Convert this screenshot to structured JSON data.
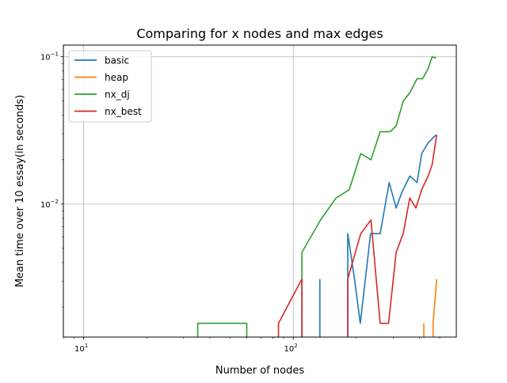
{
  "chart_data": {
    "type": "line",
    "title": "Comparing for x nodes and max edges",
    "xlabel": "Number of nodes",
    "ylabel": "Mean time over 10 essay(in seconds)",
    "xscale": "log",
    "yscale": "log",
    "xlim": [
      8,
      600
    ],
    "ylim": [
      0.00125,
      0.12
    ],
    "xticks": [
      {
        "value": 10,
        "base": "10",
        "exp": "1"
      },
      {
        "value": 100,
        "base": "10",
        "exp": "2"
      }
    ],
    "yticks": [
      {
        "value": 0.01,
        "base": "10",
        "exp": "−2"
      },
      {
        "value": 0.1,
        "base": "10",
        "exp": "−1"
      }
    ],
    "grid": true,
    "legend_position": "top-left",
    "series": [
      {
        "name": "basic",
        "color": "#1f77b4",
        "segments": [
          [
            [
              134,
              0.00125
            ],
            [
              134,
              0.0031
            ]
          ],
          [
            [
              182,
              0.00125
            ],
            [
              182,
              0.0063
            ],
            [
              196,
              0.0031
            ],
            [
              209,
              0.00155
            ],
            [
              234,
              0.0063
            ],
            [
              260,
              0.0063
            ],
            [
              287,
              0.014
            ],
            [
              310,
              0.0094
            ],
            [
              330,
              0.012
            ],
            [
              360,
              0.0155
            ],
            [
              390,
              0.014
            ],
            [
              410,
              0.022
            ],
            [
              440,
              0.026
            ],
            [
              480,
              0.0295
            ]
          ]
        ]
      },
      {
        "name": "heap",
        "color": "#ff7f0e",
        "segments": [
          [
            [
              420,
              0.00125
            ],
            [
              420,
              0.00155
            ]
          ],
          [
            [
              465,
              0.00125
            ],
            [
              465,
              0.00155
            ],
            [
              484,
              0.0031
            ]
          ]
        ]
      },
      {
        "name": "nx_dj",
        "color": "#2ca02c",
        "segments": [
          [
            [
              35,
              0.00125
            ],
            [
              35,
              0.00155
            ],
            [
              60,
              0.00155
            ],
            [
              60,
              0.00125
            ]
          ],
          [
            [
              110,
              0.00125
            ],
            [
              110,
              0.0047
            ],
            [
              135,
              0.0078
            ],
            [
              160,
              0.011
            ],
            [
              185,
              0.0125
            ],
            [
              210,
              0.022
            ],
            [
              235,
              0.02
            ],
            [
              260,
              0.031
            ],
            [
              290,
              0.031
            ],
            [
              310,
              0.034
            ],
            [
              335,
              0.05
            ],
            [
              360,
              0.057
            ],
            [
              390,
              0.071
            ],
            [
              415,
              0.071
            ],
            [
              440,
              0.083
            ],
            [
              460,
              0.1
            ],
            [
              480,
              0.098
            ]
          ]
        ]
      },
      {
        "name": "nx_best",
        "color": "#d62728",
        "segments": [
          [
            [
              85,
              0.00125
            ],
            [
              85,
              0.00155
            ],
            [
              110,
              0.0031
            ],
            [
              110,
              0.00125
            ]
          ],
          [
            [
              182,
              0.00125
            ],
            [
              182,
              0.0031
            ],
            [
              210,
              0.0063
            ],
            [
              235,
              0.0078
            ],
            [
              260,
              0.00155
            ],
            [
              285,
              0.00155
            ],
            [
              310,
              0.0047
            ],
            [
              335,
              0.0063
            ],
            [
              360,
              0.011
            ],
            [
              385,
              0.0094
            ],
            [
              410,
              0.0125
            ],
            [
              440,
              0.0155
            ],
            [
              460,
              0.0185
            ],
            [
              484,
              0.0295
            ]
          ]
        ]
      }
    ]
  }
}
